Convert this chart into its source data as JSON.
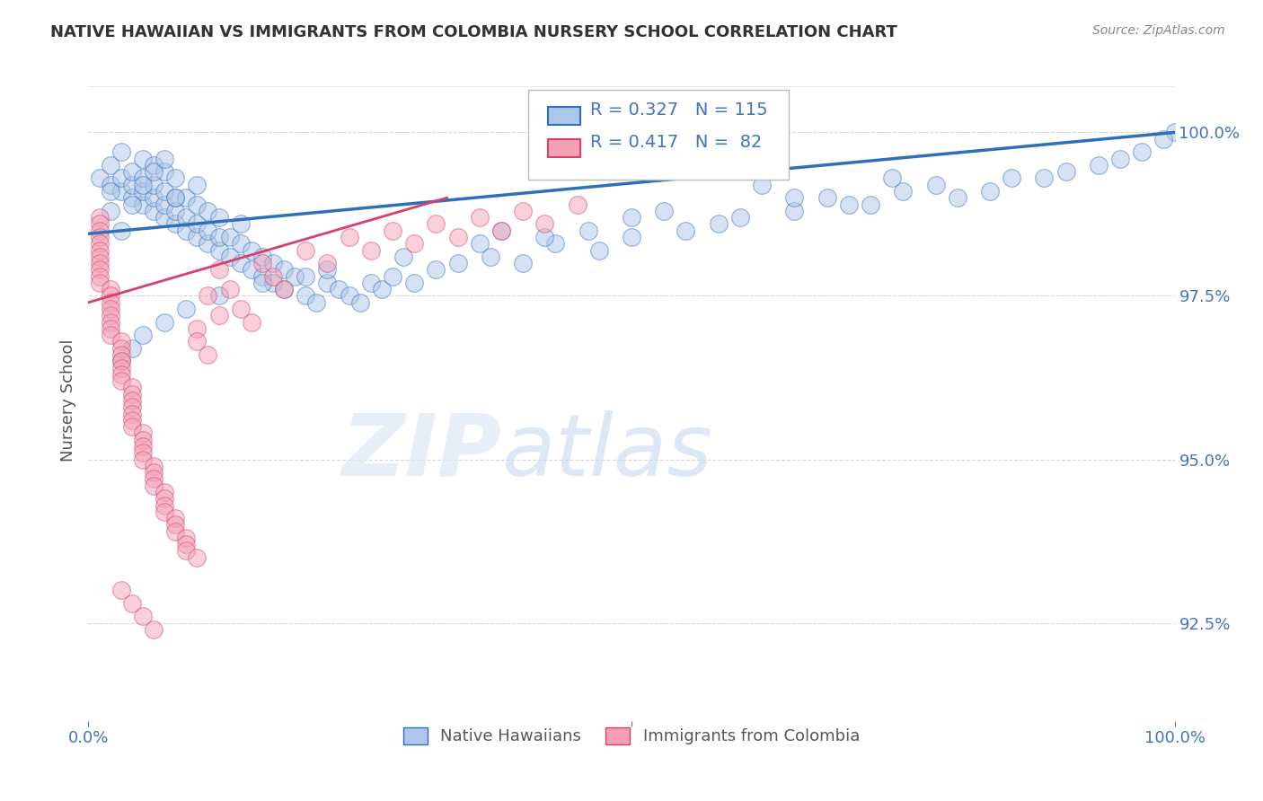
{
  "title": "NATIVE HAWAIIAN VS IMMIGRANTS FROM COLOMBIA NURSERY SCHOOL CORRELATION CHART",
  "source": "Source: ZipAtlas.com",
  "ylabel": "Nursery School",
  "legend_label_blue": "Native Hawaiians",
  "legend_label_pink": "Immigrants from Colombia",
  "R_blue": 0.327,
  "N_blue": 115,
  "R_pink": 0.417,
  "N_pink": 82,
  "xmin": 0.0,
  "xmax": 1.0,
  "ymin": 0.91,
  "ymax": 1.008,
  "yticks": [
    0.925,
    0.95,
    0.975,
    1.0
  ],
  "ytick_labels": [
    "92.5%",
    "95.0%",
    "97.5%",
    "100.0%"
  ],
  "color_blue": "#aec6e8",
  "color_pink": "#f4a0b5",
  "line_color_blue": "#2e6fba",
  "line_color_pink": "#d63f6e",
  "background_color": "#ffffff",
  "grid_color": "#cccccc",
  "title_color": "#333333",
  "axis_color": "#4472c4",
  "watermark_zip": "ZIP",
  "watermark_atlas": "atlas",
  "blue_x": [
    0.01,
    0.02,
    0.02,
    0.03,
    0.03,
    0.03,
    0.04,
    0.04,
    0.04,
    0.05,
    0.05,
    0.05,
    0.05,
    0.06,
    0.06,
    0.06,
    0.06,
    0.07,
    0.07,
    0.07,
    0.07,
    0.08,
    0.08,
    0.08,
    0.08,
    0.09,
    0.09,
    0.09,
    0.1,
    0.1,
    0.1,
    0.1,
    0.11,
    0.11,
    0.11,
    0.12,
    0.12,
    0.12,
    0.13,
    0.13,
    0.14,
    0.14,
    0.14,
    0.15,
    0.15,
    0.16,
    0.16,
    0.17,
    0.17,
    0.18,
    0.18,
    0.19,
    0.2,
    0.2,
    0.21,
    0.22,
    0.23,
    0.24,
    0.25,
    0.26,
    0.27,
    0.28,
    0.3,
    0.32,
    0.34,
    0.37,
    0.4,
    0.43,
    0.47,
    0.5,
    0.55,
    0.6,
    0.65,
    0.7,
    0.75,
    0.8,
    0.85,
    0.9,
    0.95,
    1.0,
    0.38,
    0.42,
    0.5,
    0.58,
    0.65,
    0.72,
    0.78,
    0.83,
    0.88,
    0.93,
    0.97,
    0.99,
    0.62,
    0.68,
    0.74,
    0.53,
    0.46,
    0.36,
    0.29,
    0.22,
    0.16,
    0.12,
    0.09,
    0.07,
    0.05,
    0.04,
    0.03,
    0.03,
    0.02,
    0.02,
    0.04,
    0.05,
    0.06,
    0.07,
    0.08
  ],
  "blue_y": [
    0.993,
    0.992,
    0.995,
    0.991,
    0.993,
    0.997,
    0.99,
    0.992,
    0.994,
    0.989,
    0.991,
    0.993,
    0.996,
    0.988,
    0.99,
    0.992,
    0.995,
    0.987,
    0.989,
    0.991,
    0.994,
    0.986,
    0.988,
    0.99,
    0.993,
    0.985,
    0.987,
    0.99,
    0.984,
    0.986,
    0.989,
    0.992,
    0.983,
    0.985,
    0.988,
    0.982,
    0.984,
    0.987,
    0.981,
    0.984,
    0.98,
    0.983,
    0.986,
    0.979,
    0.982,
    0.978,
    0.981,
    0.977,
    0.98,
    0.976,
    0.979,
    0.978,
    0.975,
    0.978,
    0.974,
    0.977,
    0.976,
    0.975,
    0.974,
    0.977,
    0.976,
    0.978,
    0.977,
    0.979,
    0.98,
    0.981,
    0.98,
    0.983,
    0.982,
    0.984,
    0.985,
    0.987,
    0.988,
    0.989,
    0.991,
    0.99,
    0.993,
    0.994,
    0.996,
    1.0,
    0.985,
    0.984,
    0.987,
    0.986,
    0.99,
    0.989,
    0.992,
    0.991,
    0.993,
    0.995,
    0.997,
    0.999,
    0.992,
    0.99,
    0.993,
    0.988,
    0.985,
    0.983,
    0.981,
    0.979,
    0.977,
    0.975,
    0.973,
    0.971,
    0.969,
    0.967,
    0.965,
    0.985,
    0.988,
    0.991,
    0.989,
    0.992,
    0.994,
    0.996,
    0.99
  ],
  "pink_x": [
    0.01,
    0.01,
    0.01,
    0.01,
    0.01,
    0.01,
    0.01,
    0.01,
    0.01,
    0.01,
    0.01,
    0.02,
    0.02,
    0.02,
    0.02,
    0.02,
    0.02,
    0.02,
    0.02,
    0.03,
    0.03,
    0.03,
    0.03,
    0.03,
    0.03,
    0.03,
    0.04,
    0.04,
    0.04,
    0.04,
    0.04,
    0.04,
    0.04,
    0.05,
    0.05,
    0.05,
    0.05,
    0.05,
    0.06,
    0.06,
    0.06,
    0.06,
    0.07,
    0.07,
    0.07,
    0.07,
    0.08,
    0.08,
    0.08,
    0.09,
    0.09,
    0.09,
    0.1,
    0.1,
    0.1,
    0.11,
    0.11,
    0.12,
    0.12,
    0.13,
    0.14,
    0.15,
    0.16,
    0.17,
    0.18,
    0.2,
    0.22,
    0.24,
    0.26,
    0.28,
    0.3,
    0.32,
    0.34,
    0.36,
    0.38,
    0.4,
    0.42,
    0.45,
    0.03,
    0.04,
    0.05,
    0.06
  ],
  "pink_y": [
    0.987,
    0.986,
    0.985,
    0.984,
    0.983,
    0.982,
    0.981,
    0.98,
    0.979,
    0.978,
    0.977,
    0.976,
    0.975,
    0.974,
    0.973,
    0.972,
    0.971,
    0.97,
    0.969,
    0.968,
    0.967,
    0.966,
    0.965,
    0.964,
    0.963,
    0.962,
    0.961,
    0.96,
    0.959,
    0.958,
    0.957,
    0.956,
    0.955,
    0.954,
    0.953,
    0.952,
    0.951,
    0.95,
    0.949,
    0.948,
    0.947,
    0.946,
    0.945,
    0.944,
    0.943,
    0.942,
    0.941,
    0.94,
    0.939,
    0.938,
    0.937,
    0.936,
    0.935,
    0.97,
    0.968,
    0.966,
    0.975,
    0.972,
    0.979,
    0.976,
    0.973,
    0.971,
    0.98,
    0.978,
    0.976,
    0.982,
    0.98,
    0.984,
    0.982,
    0.985,
    0.983,
    0.986,
    0.984,
    0.987,
    0.985,
    0.988,
    0.986,
    0.989,
    0.93,
    0.928,
    0.926,
    0.924
  ]
}
